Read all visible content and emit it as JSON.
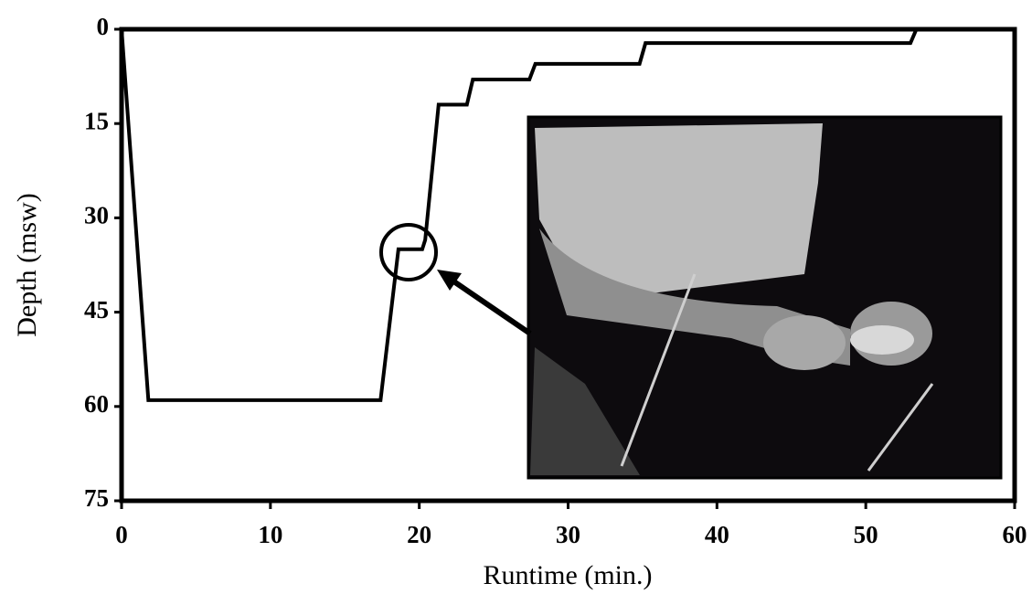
{
  "chart_data": {
    "type": "line",
    "x_label": "Runtime (min.)",
    "y_label": "Depth (msw)",
    "xlim": [
      0,
      60
    ],
    "xticks": [
      0,
      10,
      20,
      30,
      40,
      50,
      60
    ],
    "ylim": [
      75,
      0
    ],
    "yticks": [
      0,
      15,
      30,
      45,
      60,
      75
    ],
    "x": [
      0,
      1.8,
      17.4,
      18.6,
      20.2,
      20.4,
      21.3,
      23.2,
      23.6,
      27.4,
      27.8,
      34.8,
      35.2,
      53.0,
      53.4,
      60
    ],
    "series": [
      {
        "color": "#000000",
        "values": [
          0,
          59,
          59,
          35,
          35,
          33.5,
          12,
          12,
          8,
          8,
          5.5,
          5.5,
          2.2,
          2.2,
          0,
          0
        ]
      }
    ]
  }
}
